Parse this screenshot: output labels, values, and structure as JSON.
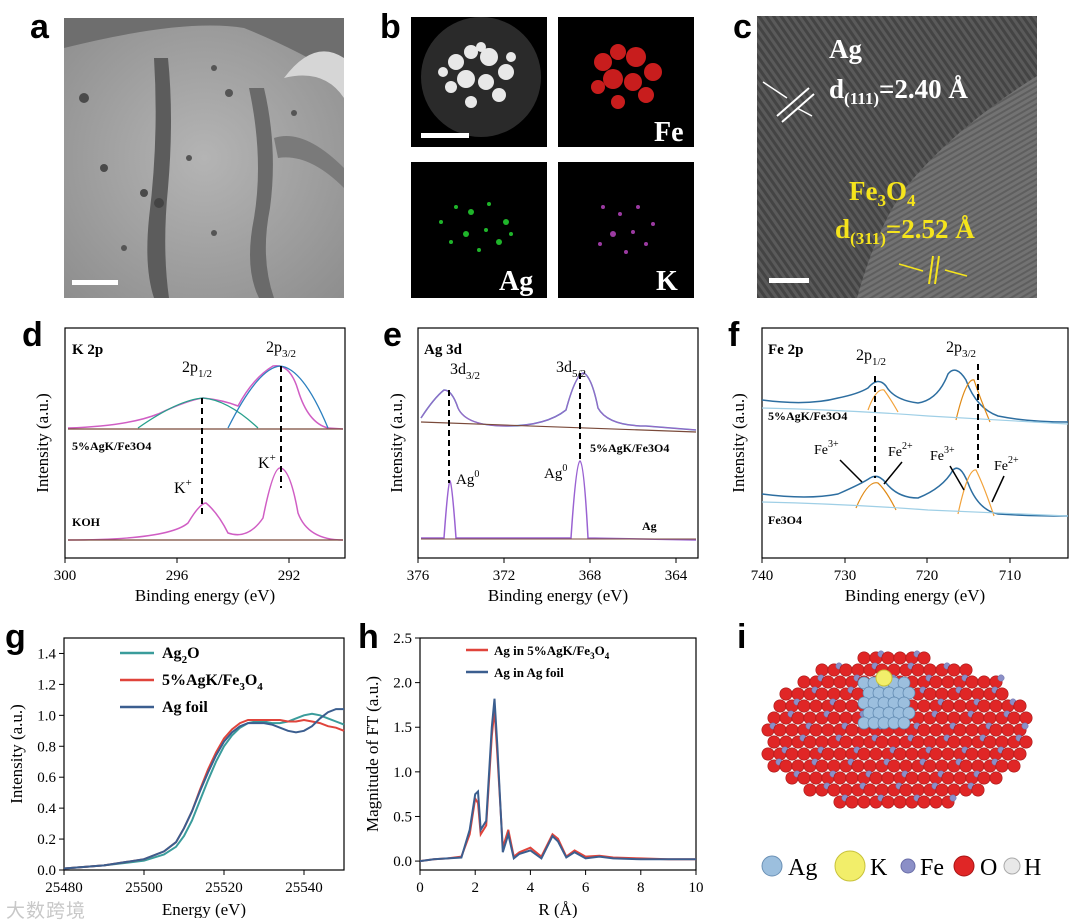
{
  "figure": {
    "panel_labels": {
      "a": "a",
      "b": "b",
      "c": "c",
      "d": "d",
      "e": "e",
      "f": "f",
      "g": "g",
      "h": "h",
      "i": "i"
    },
    "panel_b": {
      "fe": "Fe",
      "ag": "Ag",
      "k": "K"
    },
    "panel_c": {
      "ag": "Ag",
      "ag_d_prefix": "d",
      "ag_d_sub": "(111)",
      "ag_d_value": "=2.40 Å",
      "fe3o4_fe": "Fe",
      "fe3o4_3": "3",
      "fe3o4_o": "O",
      "fe3o4_4": "4",
      "fe_d_prefix": "d",
      "fe_d_sub": "(311)",
      "fe_d_value": "=2.52 Å"
    },
    "panel_i_legend": [
      "Ag",
      "K",
      "Fe",
      "O",
      "H"
    ],
    "watermark": "大数跨境"
  },
  "chart_data": [
    {
      "type": "line",
      "panel": "d",
      "title": "K 2p",
      "xlabel": "Binding energy (eV)",
      "ylabel": "Intensity (a.u.)",
      "xlim": [
        300,
        290
      ],
      "xticks": [
        300,
        296,
        292
      ],
      "xtick_labels": [
        "300",
        "296",
        "292"
      ],
      "series": [
        {
          "name": "5%AgK/Fe3O4",
          "peaks": [
            {
              "label": "2p1/2",
              "x": 295.3
            },
            {
              "label": "2p3/2",
              "x": 292.1
            }
          ]
        },
        {
          "name": "KOH",
          "peaks": [
            {
              "label": "K+",
              "x": 295.3
            },
            {
              "label": "K+",
              "x": 292.1
            }
          ]
        }
      ],
      "annotations": [
        "2p",
        "1/2",
        "2p",
        "3/2",
        "K",
        "+",
        "K",
        "+"
      ],
      "sample_labels": [
        "5%AgK/Fe3O4",
        "KOH"
      ]
    },
    {
      "type": "line",
      "panel": "e",
      "title": "Ag 3d",
      "xlabel": "Binding energy (eV)",
      "ylabel": "Intensity (a.u.)",
      "xlim": [
        376,
        363
      ],
      "xticks": [
        376,
        372,
        368,
        364
      ],
      "xtick_labels": [
        "376",
        "372",
        "368",
        "364"
      ],
      "series": [
        {
          "name": "5%AgK/Fe3O4",
          "peaks": [
            {
              "label": "3d3/2",
              "x": 374.3
            },
            {
              "label": "3d5/2",
              "x": 368.3
            }
          ]
        },
        {
          "name": "Ag",
          "peaks": [
            {
              "label": "Ag0",
              "x": 374.3
            },
            {
              "label": "Ag0",
              "x": 368.3
            }
          ]
        }
      ],
      "annotations": [
        "3d",
        "3/2",
        "3d",
        "5/2",
        "Ag",
        "0",
        "Ag",
        "0"
      ],
      "sample_labels": [
        "5%AgK/Fe3O4",
        "Ag"
      ]
    },
    {
      "type": "line",
      "panel": "f",
      "title": "Fe 2p",
      "xlabel": "Binding energy (eV)",
      "ylabel": "Intensity (a.u.)",
      "xlim": [
        740,
        703
      ],
      "xticks": [
        740,
        730,
        720,
        710
      ],
      "xtick_labels": [
        "740",
        "730",
        "720",
        "710"
      ],
      "series": [
        {
          "name": "5%AgK/Fe3O4",
          "peaks": [
            {
              "label": "2p1/2",
              "x": 724
            },
            {
              "label": "2p3/2",
              "x": 710.5
            }
          ]
        },
        {
          "name": "Fe3O4",
          "peaks": [
            {
              "label": "Fe3+",
              "x": 725.5
            },
            {
              "label": "Fe2+",
              "x": 723.5
            },
            {
              "label": "Fe3+",
              "x": 712
            },
            {
              "label": "Fe2+",
              "x": 710
            }
          ]
        }
      ],
      "annotations": [
        "2p",
        "1/2",
        "2p",
        "3/2",
        "Fe",
        "3+",
        "Fe",
        "2+",
        "Fe",
        "3+",
        "Fe",
        "2+"
      ],
      "sample_labels": [
        "5%AgK/Fe3O4",
        "Fe3O4"
      ]
    },
    {
      "type": "line",
      "panel": "g",
      "xlabel": "Energy (eV)",
      "ylabel": "Intensity (a.u.)",
      "xlim": [
        25480,
        25550
      ],
      "ylim": [
        0,
        1.5
      ],
      "xticks": [
        25480,
        25500,
        25520,
        25540
      ],
      "xtick_labels": [
        "25480",
        "25500",
        "25520",
        "25540"
      ],
      "yticks": [
        0,
        0.2,
        0.4,
        0.6,
        0.8,
        1.0,
        1.2,
        1.4
      ],
      "ytick_labels": [
        "0.0",
        "0.2",
        "0.4",
        "0.6",
        "0.8",
        "1.0",
        "1.2",
        "1.4"
      ],
      "legend": [
        {
          "name": "Ag",
          "sub": "2",
          "tail": "O",
          "color": "#3a9c9b"
        },
        {
          "name": "5%AgK/Fe",
          "sub": "3",
          "tail": "O",
          "sub2": "4",
          "color": "#e0443b"
        },
        {
          "name": "Ag foil",
          "color": "#3b5e8f"
        }
      ],
      "x": [
        25480,
        25490,
        25500,
        25505,
        25508,
        25510,
        25512,
        25514,
        25516,
        25518,
        25520,
        25522,
        25524,
        25526,
        25528,
        25530,
        25532,
        25534,
        25536,
        25538,
        25540,
        25542,
        25544,
        25546,
        25548,
        25550
      ],
      "series": [
        {
          "name": "Ag2O",
          "color": "#3a9c9b",
          "values": [
            0.01,
            0.03,
            0.06,
            0.1,
            0.15,
            0.22,
            0.32,
            0.45,
            0.58,
            0.7,
            0.8,
            0.87,
            0.92,
            0.95,
            0.96,
            0.96,
            0.95,
            0.95,
            0.96,
            0.98,
            1.0,
            1.01,
            1.0,
            0.98,
            0.96,
            0.94
          ]
        },
        {
          "name": "5%AgK/Fe3O4",
          "color": "#e0443b",
          "values": [
            0.01,
            0.03,
            0.07,
            0.12,
            0.18,
            0.27,
            0.38,
            0.52,
            0.65,
            0.76,
            0.85,
            0.91,
            0.95,
            0.97,
            0.97,
            0.97,
            0.97,
            0.97,
            0.96,
            0.96,
            0.97,
            0.96,
            0.95,
            0.93,
            0.92,
            0.9
          ]
        },
        {
          "name": "Ag foil",
          "color": "#3b5e8f",
          "values": [
            0.01,
            0.03,
            0.07,
            0.12,
            0.18,
            0.27,
            0.38,
            0.51,
            0.63,
            0.74,
            0.83,
            0.89,
            0.93,
            0.95,
            0.95,
            0.95,
            0.94,
            0.92,
            0.9,
            0.89,
            0.9,
            0.93,
            0.98,
            1.02,
            1.04,
            1.04
          ]
        }
      ]
    },
    {
      "type": "line",
      "panel": "h",
      "xlabel": "R (Å)",
      "ylabel": "Magnitude of FT (a.u.)",
      "xlim": [
        0,
        10
      ],
      "ylim": [
        -0.1,
        2.5
      ],
      "xticks": [
        0,
        2,
        4,
        6,
        8,
        10
      ],
      "xtick_labels": [
        "0",
        "2",
        "4",
        "6",
        "8",
        "10"
      ],
      "yticks": [
        0,
        0.5,
        1.0,
        1.5,
        2.0,
        2.5
      ],
      "ytick_labels": [
        "0.0",
        "0.5",
        "1.0",
        "1.5",
        "2.0",
        "2.5"
      ],
      "legend": [
        {
          "name": "Ag in 5%AgK/Fe",
          "sub": "3",
          "tail": "O",
          "sub2": "4",
          "color": "#e0443b"
        },
        {
          "name": "Ag in Ag foil",
          "color": "#3b5e8f"
        }
      ],
      "x": [
        0,
        0.5,
        1.0,
        1.5,
        1.8,
        2.0,
        2.1,
        2.2,
        2.4,
        2.6,
        2.7,
        2.8,
        3.0,
        3.2,
        3.4,
        3.6,
        4.0,
        4.4,
        4.8,
        5.0,
        5.3,
        5.6,
        6.0,
        6.5,
        7,
        8,
        9,
        10
      ],
      "series": [
        {
          "name": "Ag in 5%AgK/Fe3O4",
          "color": "#e0443b",
          "values": [
            0,
            0.02,
            0.03,
            0.05,
            0.3,
            0.7,
            0.65,
            0.3,
            0.4,
            1.4,
            1.7,
            1.2,
            0.15,
            0.35,
            0.05,
            0.1,
            0.15,
            0.05,
            0.3,
            0.25,
            0.05,
            0.12,
            0.05,
            0.06,
            0.04,
            0.03,
            0.02,
            0.02
          ]
        },
        {
          "name": "Ag in Ag foil",
          "color": "#3b5e8f",
          "values": [
            0,
            0.02,
            0.03,
            0.04,
            0.35,
            0.75,
            0.78,
            0.35,
            0.45,
            1.5,
            1.82,
            1.3,
            0.1,
            0.3,
            0.03,
            0.08,
            0.12,
            0.03,
            0.28,
            0.22,
            0.04,
            0.1,
            0.03,
            0.05,
            0.03,
            0.02,
            0.02,
            0.02
          ]
        }
      ]
    }
  ]
}
